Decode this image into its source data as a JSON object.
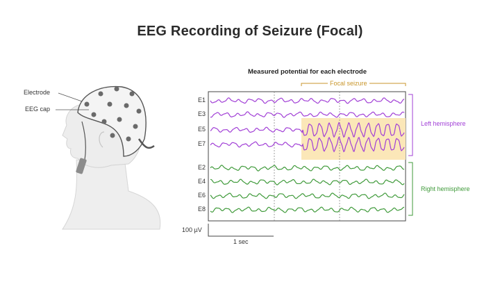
{
  "title": "EEG Recording of Seizure (Focal)",
  "subtitle": "Measured potential for each electrode",
  "head_labels": {
    "electrode": "Electrode",
    "cap": "EEG cap"
  },
  "focal_label": "Focal seizure",
  "hemispheres": {
    "left": "Left hemisphere",
    "right": "Right hemisphere"
  },
  "scale": {
    "voltage": "100 µV",
    "time": "1 sec"
  },
  "channels": [
    {
      "name": "E1",
      "group": "left"
    },
    {
      "name": "E3",
      "group": "left"
    },
    {
      "name": "E5",
      "group": "left",
      "seizure": true
    },
    {
      "name": "E7",
      "group": "left",
      "seizure": true
    },
    {
      "name": "E2",
      "group": "right"
    },
    {
      "name": "E4",
      "group": "right"
    },
    {
      "name": "E6",
      "group": "right"
    },
    {
      "name": "E8",
      "group": "right"
    }
  ],
  "colors": {
    "left": "#a13fd6",
    "right": "#3f9a3a",
    "seizure_fill": "#fbe7b8",
    "bracket": "#c9962b"
  }
}
